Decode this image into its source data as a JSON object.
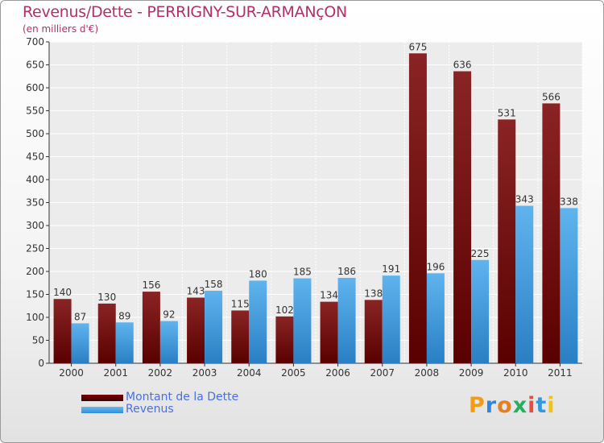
{
  "title": "Revenus/Dette - PERRIGNY-SUR-ARMANçON",
  "subtitle": "(en milliers d'€)",
  "legend": {
    "debt_label": "Montant de la Dette",
    "revenue_label": "Revenus"
  },
  "logo": {
    "text": "Proxiti",
    "letters": [
      "P",
      "r",
      "o",
      "x",
      "i",
      "t",
      "i"
    ]
  },
  "colors": {
    "debt_top": "#8a2424",
    "debt_bottom": "#5a0000",
    "revenue_top": "#5fb4ee",
    "revenue_bottom": "#2a7fc4",
    "title": "#b0306a",
    "legend_text": "#4a6fe0",
    "logo_letters": [
      "#f39c12",
      "#2e86de",
      "#e67e22",
      "#27ae60",
      "#e74c3c",
      "#3498db",
      "#f1c40f"
    ]
  },
  "chart_data": {
    "type": "bar",
    "title": "Revenus/Dette - PERRIGNY-SUR-ARMANçON",
    "subtitle": "(en milliers d'€)",
    "categories": [
      "2000",
      "2001",
      "2002",
      "2003",
      "2004",
      "2005",
      "2006",
      "2007",
      "2008",
      "2009",
      "2010",
      "2011"
    ],
    "series": [
      {
        "name": "Montant de la Dette",
        "values": [
          140,
          130,
          156,
          143,
          115,
          102,
          134,
          138,
          675,
          636,
          531,
          566
        ]
      },
      {
        "name": "Revenus",
        "values": [
          87,
          89,
          92,
          158,
          180,
          185,
          186,
          191,
          196,
          225,
          343,
          338
        ]
      }
    ],
    "ylim": [
      0,
      700
    ],
    "yticks": [
      0,
      50,
      100,
      150,
      200,
      250,
      300,
      350,
      400,
      450,
      500,
      550,
      600,
      650,
      700
    ],
    "grid": true,
    "legend_position": "bottom-left"
  }
}
